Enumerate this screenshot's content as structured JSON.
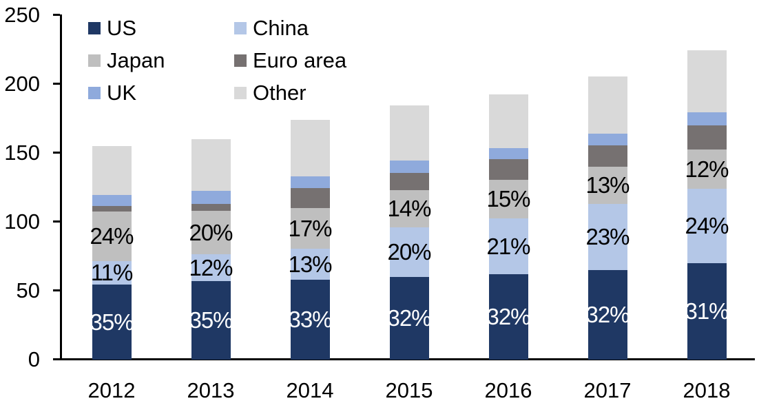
{
  "chart_data": {
    "type": "bar",
    "stacked": true,
    "title": "",
    "xlabel": "",
    "ylabel": "",
    "ylim": [
      0,
      250
    ],
    "y_ticks": [
      0,
      50,
      100,
      150,
      200,
      250
    ],
    "grid": false,
    "legend_position": "top-left",
    "categories": [
      "2012",
      "2013",
      "2014",
      "2015",
      "2016",
      "2017",
      "2018"
    ],
    "series": [
      {
        "name": "US",
        "color": "#1f3864",
        "values": [
          54.5,
          57,
          58,
          60,
          62,
          65,
          70
        ],
        "labels": [
          "35%",
          "35%",
          "33%",
          "32%",
          "32%",
          "32%",
          "31%"
        ],
        "label_color": "#ffffff"
      },
      {
        "name": "China",
        "color": "#b4c7e7",
        "values": [
          17,
          19.5,
          22.5,
          36,
          40.5,
          48,
          54
        ],
        "labels": [
          "11%",
          "12%",
          "13%",
          "20%",
          "21%",
          "23%",
          "24%"
        ],
        "label_color": "#000000"
      },
      {
        "name": "Japan",
        "color": "#bfbfbf",
        "values": [
          36,
          31.5,
          29.5,
          27,
          28,
          27,
          28.5
        ],
        "labels": [
          "24%",
          "20%",
          "17%",
          "14%",
          "15%",
          "13%",
          "12%"
        ],
        "label_color": "#000000"
      },
      {
        "name": "Euro area",
        "color": "#767171",
        "values": [
          4,
          5,
          14.5,
          12.5,
          15,
          15.5,
          17.5
        ]
      },
      {
        "name": "UK",
        "color": "#8faadc",
        "values": [
          8,
          9.5,
          8.5,
          9,
          8,
          8.5,
          9.5
        ]
      },
      {
        "name": "Other",
        "color": "#d9d9d9",
        "values": [
          35.5,
          37.5,
          41,
          40,
          39,
          41.5,
          45
        ]
      }
    ],
    "totals_estimated": [
      155,
      160,
      174,
      184,
      192,
      205,
      224
    ],
    "legend_layout": [
      [
        "US",
        "China"
      ],
      [
        "Japan",
        "Euro area"
      ],
      [
        "UK",
        "Other"
      ]
    ],
    "axis_color": "#000000",
    "text_color": "#000000"
  }
}
